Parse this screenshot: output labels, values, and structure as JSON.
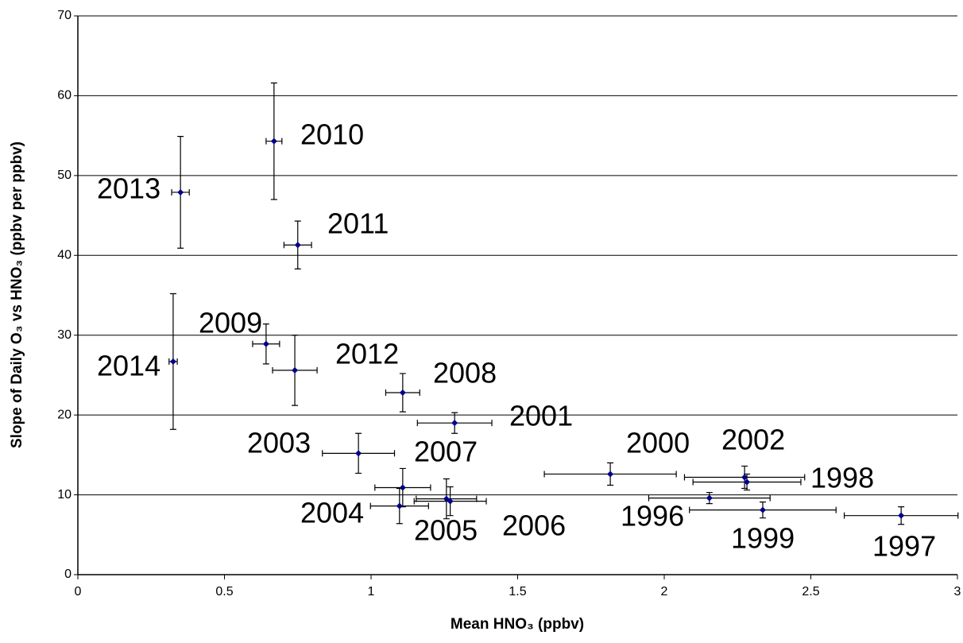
{
  "chart_data": {
    "type": "scatter",
    "x_label": "Mean HNO₃ (ppbv)",
    "y_label": "Slope of Daily O₃ vs HNO₃ (ppbv per ppbv)",
    "xlim": [
      0,
      3
    ],
    "xticks": [
      0,
      0.5,
      1,
      1.5,
      2,
      2.5,
      3
    ],
    "ylim": [
      0,
      70
    ],
    "yticks": [
      0,
      10,
      20,
      30,
      40,
      50,
      60,
      70
    ],
    "grid": true,
    "series": [
      {
        "color": "#00008b",
        "point_labels": [
          "2010",
          "2013",
          "2011",
          "2014",
          "2009",
          "2012",
          "2008",
          "2001",
          "2003",
          "2007",
          "2004",
          "2005",
          "2006",
          "2000",
          "2002",
          "1998",
          "1996",
          "1999",
          "1997"
        ],
        "x": [
          0.669,
          0.35,
          0.75,
          0.325,
          0.642,
          0.74,
          1.108,
          1.285,
          0.957,
          1.108,
          1.097,
          1.257,
          1.27,
          1.816,
          2.274,
          2.282,
          2.154,
          2.336,
          2.808
        ],
        "values": [
          54.3,
          47.9,
          41.3,
          26.7,
          28.9,
          25.6,
          22.8,
          19.0,
          15.2,
          10.9,
          8.6,
          9.5,
          9.2,
          12.6,
          12.2,
          11.6,
          9.6,
          8.1,
          7.4
        ],
        "x_err": [
          0.027,
          0.03,
          0.047,
          0.014,
          0.046,
          0.076,
          0.058,
          0.127,
          0.123,
          0.095,
          0.099,
          0.103,
          0.123,
          0.225,
          0.205,
          0.184,
          0.207,
          0.25,
          0.194
        ],
        "y_err": [
          7.3,
          7,
          3,
          8.5,
          2.5,
          4.4,
          2.4,
          1.3,
          2.5,
          2.4,
          2.2,
          2.5,
          1.8,
          1.4,
          1.4,
          1,
          0.7,
          1,
          1.1
        ]
      }
    ]
  }
}
